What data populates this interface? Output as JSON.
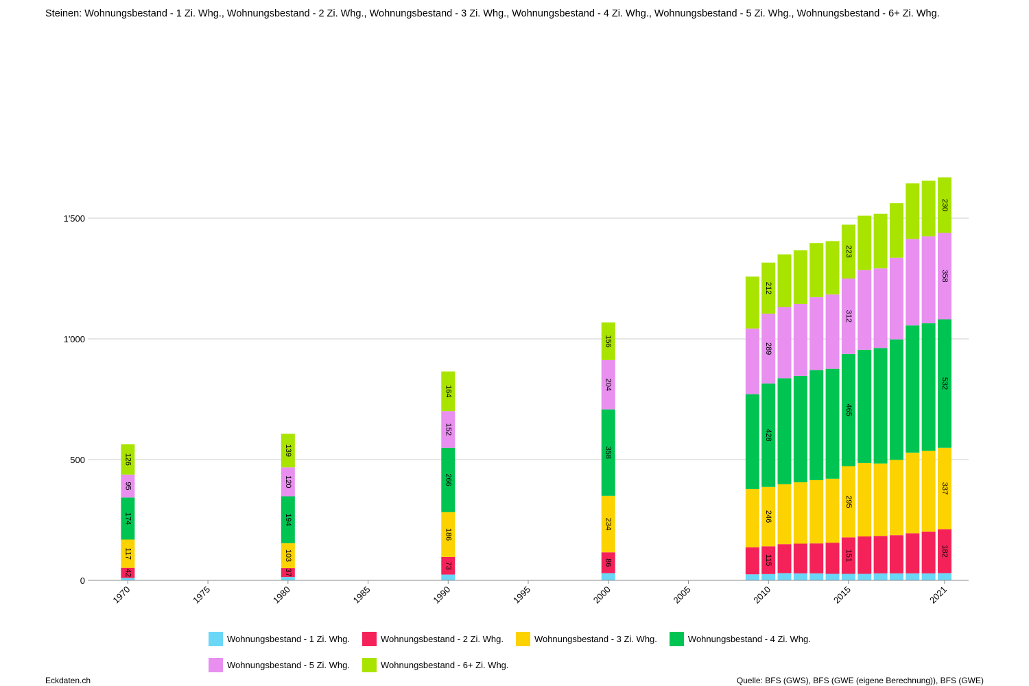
{
  "title": "Steinen: Wohnungsbestand - 1 Zi. Whg., Wohnungsbestand - 2 Zi. Whg., Wohnungsbestand - 3 Zi. Whg., Wohnungsbestand - 4 Zi. Whg., Wohnungsbestand - 5 Zi. Whg., Wohnungsbestand - 6+ Zi. Whg.",
  "footer": {
    "left": "Eckdaten.ch",
    "right": "Quelle: BFS (GWS), BFS (GWE (eigene Berechnung)), BFS (GWE)"
  },
  "chart_data": {
    "type": "bar",
    "stacked": true,
    "x": [
      1970,
      1980,
      1990,
      2000,
      2009,
      2010,
      2011,
      2012,
      2013,
      2014,
      2015,
      2016,
      2017,
      2018,
      2019,
      2020,
      2021
    ],
    "x_ticks": [
      1970,
      1975,
      1980,
      1985,
      1990,
      1995,
      2000,
      2005,
      2010,
      2015,
      2021
    ],
    "x_tick_labels": [
      "1970",
      "1975",
      "1980",
      "1985",
      "1990",
      "1995",
      "2000",
      "2005",
      "2010",
      "2015",
      "2021"
    ],
    "y_ticks": [
      0,
      500,
      1000,
      1500
    ],
    "y_tick_labels": [
      "0",
      "500",
      "1'000",
      "1'500"
    ],
    "ylim": [
      0,
      1750
    ],
    "xlim": [
      1967.5,
      2022.5
    ],
    "grid": true,
    "legend_position": "bottom",
    "series": [
      {
        "name": "Wohnungsbestand - 1 Zi. Whg.",
        "color": "#6ad7f7",
        "values": [
          10,
          14,
          24,
          30,
          25,
          26,
          30,
          29,
          29,
          27,
          27,
          27,
          29,
          29,
          29,
          29,
          30
        ]
      },
      {
        "name": "Wohnungsbestand - 2 Zi. Whg.",
        "color": "#f5225a",
        "values": [
          42,
          37,
          73,
          86,
          112,
          115,
          120,
          123,
          124,
          129,
          151,
          155,
          155,
          158,
          166,
          173,
          182
        ]
      },
      {
        "name": "Wohnungsbestand - 3 Zi. Whg.",
        "color": "#fcd200",
        "values": [
          117,
          103,
          186,
          234,
          241,
          246,
          248,
          254,
          262,
          265,
          295,
          304,
          300,
          312,
          334,
          335,
          337
        ]
      },
      {
        "name": "Wohnungsbestand - 4 Zi. Whg.",
        "color": "#00c452",
        "values": [
          174,
          194,
          266,
          358,
          393,
          428,
          439,
          441,
          456,
          455,
          465,
          469,
          478,
          499,
          527,
          528,
          532
        ]
      },
      {
        "name": "Wohnungsbestand - 5 Zi. Whg.",
        "color": "#e88ff0",
        "values": [
          95,
          120,
          152,
          204,
          272,
          289,
          295,
          298,
          302,
          308,
          312,
          330,
          330,
          338,
          358,
          360,
          358
        ]
      },
      {
        "name": "Wohnungsbestand - 6+ Zi. Whg.",
        "color": "#a9e400",
        "values": [
          126,
          139,
          164,
          156,
          215,
          212,
          218,
          222,
          224,
          221,
          223,
          225,
          226,
          226,
          230,
          230,
          230
        ]
      }
    ],
    "labeled_points": [
      1970,
      1980,
      1990,
      2000,
      2010,
      2015,
      2021
    ]
  }
}
